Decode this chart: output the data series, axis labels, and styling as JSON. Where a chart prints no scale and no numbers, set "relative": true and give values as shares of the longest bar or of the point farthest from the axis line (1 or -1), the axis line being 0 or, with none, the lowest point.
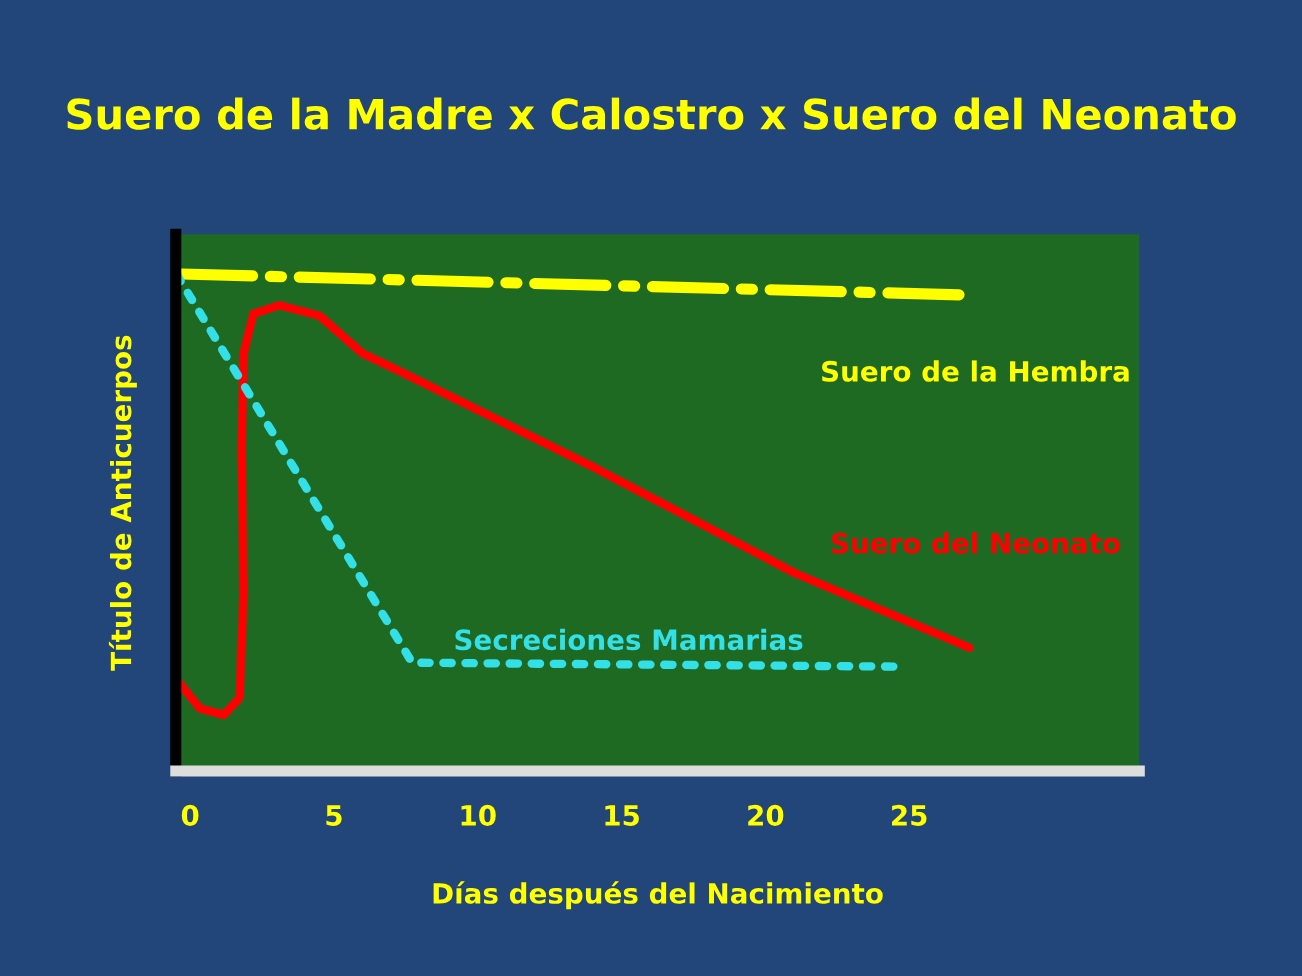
{
  "chart_data": {
    "type": "line",
    "title": "Suero de la Madre x Calostro x Suero del Neonato",
    "xlabel": "Días después del Nacimiento",
    "ylabel": "Título de Anticuerpos",
    "relative": true,
    "xlim": [
      -0.5,
      33
    ],
    "xticks": [
      0,
      5,
      10,
      15,
      20,
      25
    ],
    "grid": false,
    "legend": false,
    "series": [
      {
        "name": "Suero de la Hembra",
        "color": "#ffff00",
        "line_style": "dashed",
        "x": [
          -0.3,
          26.8
        ],
        "values": [
          1.0,
          0.958
        ]
      },
      {
        "name": "Suero del Neonato",
        "color": "#ff0000",
        "line_style": "solid",
        "x": [
          -0.41,
          0.34,
          1.17,
          1.72,
          1.86,
          1.79,
          1.86,
          2.2,
          3.1,
          4.5,
          6.0,
          7.2,
          14.1,
          21.0,
          27.1
        ],
        "values": [
          0.18,
          0.126,
          0.113,
          0.147,
          0.357,
          0.651,
          0.84,
          0.92,
          0.937,
          0.916,
          0.84,
          0.807,
          0.609,
          0.399,
          0.248
        ]
      },
      {
        "name": "Secreciones Mamarias",
        "color": "#33e0e8",
        "line_style": "dotted",
        "x": [
          -0.48,
          7.72,
          24.8
        ],
        "values": [
          1.0,
          0.218,
          0.21
        ]
      }
    ]
  }
}
